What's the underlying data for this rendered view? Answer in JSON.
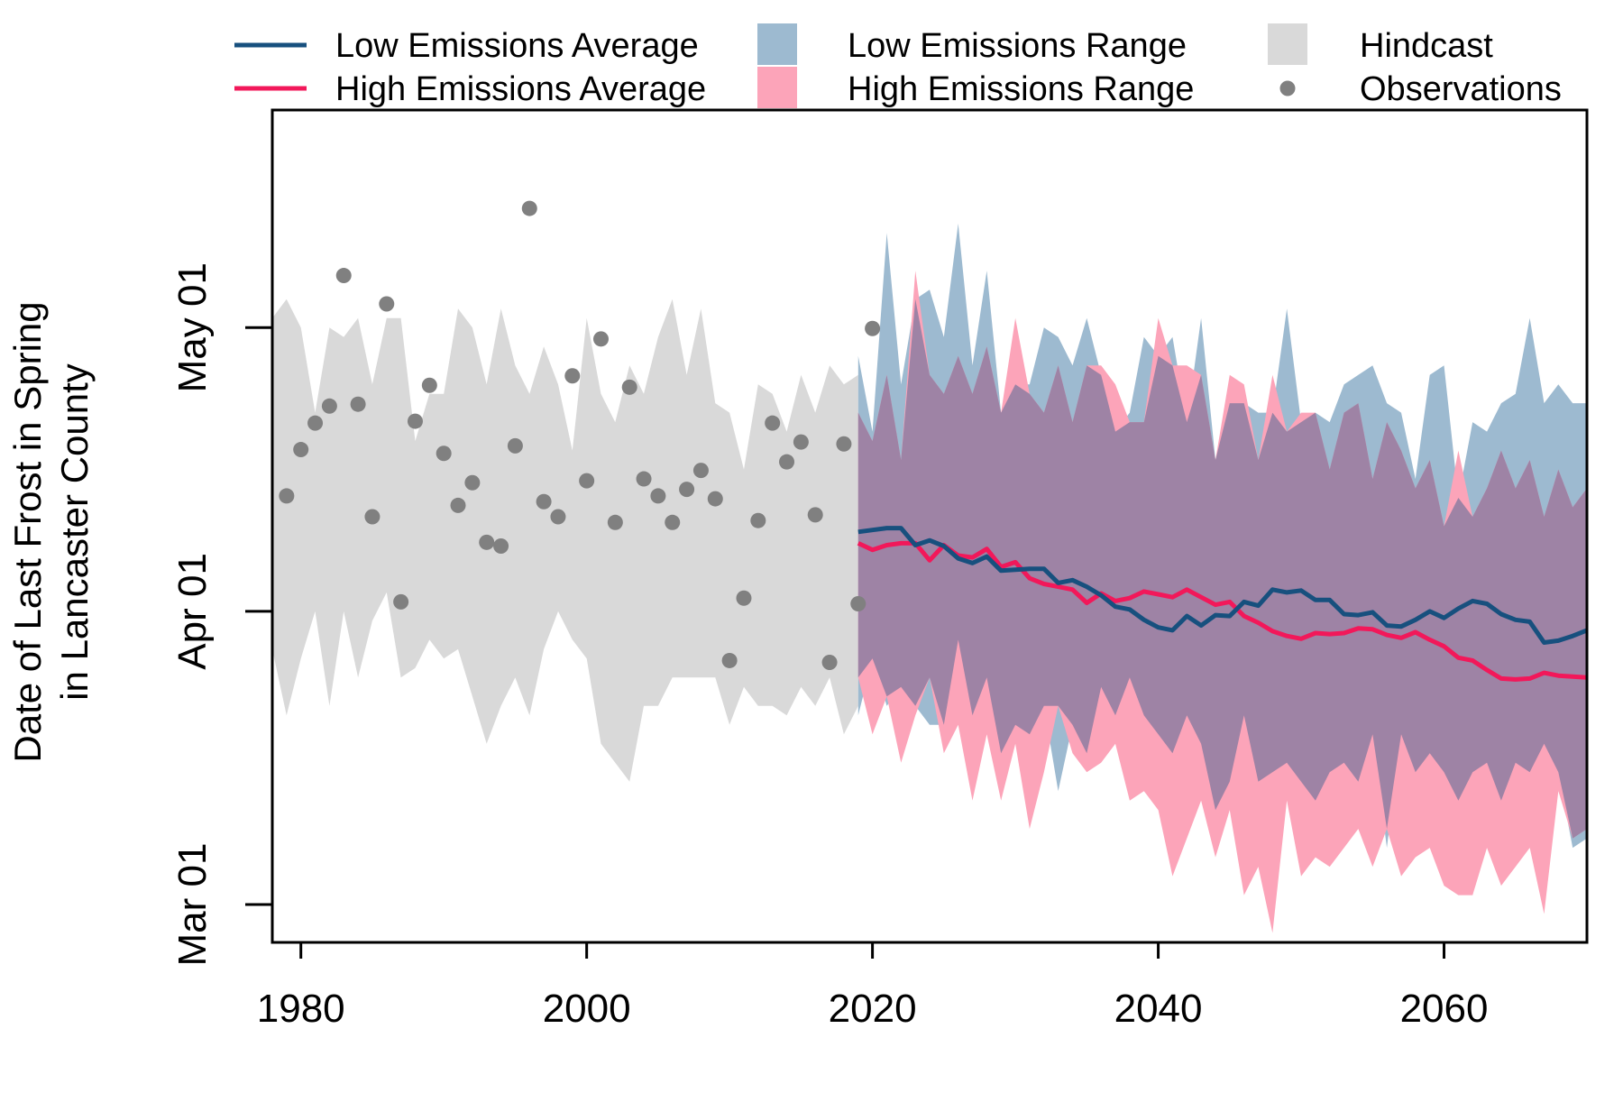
{
  "colors": {
    "low_line": "#17507e",
    "high_line": "#f2185a",
    "low_range": "#9dbad0",
    "high_range": "#fca4b9",
    "overlap": "#9e83a5",
    "hindcast": "#d9d9d9",
    "observations": "#808080",
    "axis": "#000000"
  },
  "legend": {
    "items": [
      {
        "id": "low-avg",
        "label": "Low Emissions Average",
        "kind": "line",
        "color": "#17507e"
      },
      {
        "id": "high-avg",
        "label": "High Emissions Average",
        "kind": "line",
        "color": "#f2185a"
      },
      {
        "id": "low-range",
        "label": "Low Emissions Range",
        "kind": "box",
        "color": "#9dbad0"
      },
      {
        "id": "high-range",
        "label": "High Emissions Range",
        "kind": "box",
        "color": "#fca4b9"
      },
      {
        "id": "hindcast",
        "label": "Hindcast",
        "kind": "box",
        "color": "#d9d9d9"
      },
      {
        "id": "observations",
        "label": "Observations",
        "kind": "point",
        "color": "#808080"
      }
    ]
  },
  "chart_data": {
    "type": "line",
    "title": "",
    "xlabel": "",
    "ylabel_lines": [
      "Date of Last Frost in Spring",
      "in Lancaster County"
    ],
    "x_unit": "year",
    "y_unit": "day of year",
    "xlim": [
      1978,
      2070
    ],
    "ylim": [
      56,
      144
    ],
    "x_ticks": [
      1980,
      2000,
      2020,
      2040,
      2060
    ],
    "y_ticks": [
      {
        "value": 60,
        "label": "Mar 01"
      },
      {
        "value": 91,
        "label": "Apr 01"
      },
      {
        "value": 121,
        "label": "May 01"
      }
    ],
    "grid": false,
    "legend_position": "top, above plot",
    "hindcast": {
      "x": [
        1978,
        1979,
        1980,
        1981,
        1982,
        1983,
        1984,
        1985,
        1986,
        1987,
        1988,
        1989,
        1990,
        1991,
        1992,
        1993,
        1994,
        1995,
        1996,
        1997,
        1998,
        1999,
        2000,
        2001,
        2002,
        2003,
        2004,
        2005,
        2006,
        2007,
        2008,
        2009,
        2010,
        2011,
        2012,
        2013,
        2014,
        2015,
        2016,
        2017,
        2018,
        2019
      ],
      "upper": [
        122,
        124,
        121,
        112,
        121,
        120,
        122,
        115,
        122,
        122,
        109,
        114,
        114,
        123,
        121,
        115,
        123,
        117,
        114,
        119,
        115,
        108,
        122,
        114,
        111,
        117,
        114,
        120,
        124,
        116,
        123,
        113,
        112,
        106,
        115,
        114,
        110,
        116,
        112,
        117,
        115,
        116
      ],
      "lower": [
        87,
        80,
        86,
        91,
        81,
        91,
        84,
        90,
        93,
        84,
        85,
        88,
        86,
        87,
        82,
        77,
        81,
        84,
        80,
        87,
        91,
        88,
        86,
        77,
        75,
        73,
        81,
        81,
        84,
        84,
        84,
        84,
        79,
        83,
        81,
        81,
        80,
        83,
        81,
        84,
        78,
        81
      ]
    },
    "observations": {
      "x": [
        1979,
        1980,
        1981,
        1982,
        1983,
        1984,
        1985,
        1986,
        1987,
        1988,
        1989,
        1990,
        1991,
        1992,
        1993,
        1994,
        1995,
        1996,
        1997,
        1998,
        1999,
        2000,
        2001,
        2002,
        2003,
        2004,
        2005,
        2006,
        2007,
        2008,
        2009,
        2010,
        2011,
        2012,
        2013,
        2014,
        2015,
        2016,
        2017,
        2018,
        2019,
        2020
      ],
      "y": [
        103.2,
        108.1,
        110.9,
        112.7,
        126.5,
        112.9,
        101.0,
        123.5,
        92.0,
        111.1,
        114.9,
        107.7,
        102.2,
        104.6,
        98.3,
        97.9,
        108.5,
        133.6,
        102.6,
        101.0,
        115.9,
        104.8,
        119.8,
        100.4,
        114.7,
        105.0,
        103.2,
        100.4,
        103.9,
        105.9,
        102.9,
        85.8,
        92.4,
        100.6,
        110.9,
        106.8,
        108.9,
        101.2,
        85.6,
        108.7,
        91.8,
        120.9
      ]
    },
    "projection_x": [
      2019,
      2020,
      2021,
      2022,
      2023,
      2024,
      2025,
      2026,
      2027,
      2028,
      2029,
      2030,
      2031,
      2032,
      2033,
      2034,
      2035,
      2036,
      2037,
      2038,
      2039,
      2040,
      2041,
      2042,
      2043,
      2044,
      2045,
      2046,
      2047,
      2048,
      2049,
      2050,
      2051,
      2052,
      2053,
      2054,
      2055,
      2056,
      2057,
      2058,
      2059,
      2060,
      2061,
      2062,
      2063,
      2064,
      2065,
      2066,
      2067,
      2068,
      2069,
      2070
    ],
    "series": [
      {
        "name": "Low Emissions Average",
        "values": [
          99.4,
          99.6,
          99.8,
          99.8,
          98.0,
          98.5,
          97.9,
          96.6,
          96.1,
          96.8,
          95.3,
          95.4,
          95.5,
          95.5,
          94.0,
          94.3,
          93.6,
          92.7,
          91.5,
          91.2,
          90.1,
          89.3,
          89.0,
          90.5,
          89.5,
          90.6,
          90.5,
          92.0,
          91.6,
          93.3,
          93.0,
          93.2,
          92.2,
          92.2,
          90.7,
          90.6,
          90.9,
          89.5,
          89.4,
          90.1,
          91.0,
          90.3,
          91.3,
          92.1,
          91.8,
          90.7,
          90.1,
          89.9,
          87.7,
          87.9,
          88.4,
          89.0
        ]
      },
      {
        "name": "High Emissions Average",
        "values": [
          98.2,
          97.5,
          98.0,
          98.2,
          98.2,
          96.4,
          98.0,
          96.9,
          96.7,
          97.6,
          95.7,
          96.2,
          94.5,
          93.9,
          93.6,
          93.3,
          91.9,
          92.9,
          92.1,
          92.4,
          93.1,
          92.8,
          92.5,
          93.3,
          92.5,
          91.7,
          92.0,
          90.5,
          89.8,
          88.9,
          88.4,
          88.1,
          88.7,
          88.6,
          88.7,
          89.2,
          89.1,
          88.5,
          88.2,
          88.8,
          88.0,
          87.3,
          86.1,
          85.8,
          84.8,
          83.9,
          83.8,
          83.9,
          84.5,
          84.2,
          84.1,
          84.0
        ]
      }
    ],
    "ranges": [
      {
        "name": "Low Emissions Range",
        "upper": [
          118,
          110,
          131,
          115,
          124,
          125,
          120,
          132,
          117,
          127,
          112,
          115,
          115,
          121,
          120,
          117,
          122,
          116,
          110,
          112,
          120,
          118,
          120,
          111,
          122,
          107,
          113,
          113,
          112,
          112,
          123,
          111,
          112,
          111,
          115,
          116,
          117,
          113,
          112,
          105,
          116,
          117,
          103,
          111,
          110,
          113,
          114,
          122,
          113,
          115,
          113,
          113
        ],
        "lower": [
          80,
          86,
          81,
          83,
          81,
          79,
          79,
          88,
          80,
          84,
          76,
          79,
          78,
          81,
          72,
          79,
          76,
          83,
          80,
          84,
          80,
          78,
          76,
          80,
          77,
          70,
          73,
          80,
          73,
          74,
          75,
          73,
          71,
          74,
          75,
          73,
          78,
          66,
          78,
          74,
          76,
          74,
          71,
          74,
          75,
          71,
          75,
          74,
          77,
          74,
          66,
          67
        ]
      },
      {
        "name": "High Emissions Range",
        "upper": [
          112,
          109,
          116,
          107,
          127,
          116,
          114,
          118,
          114,
          119,
          112,
          122,
          114,
          112,
          117,
          111,
          117,
          117,
          115,
          111,
          111,
          122,
          117,
          117,
          116,
          107,
          116,
          115,
          107,
          116,
          110,
          112,
          112,
          106,
          112,
          113,
          105,
          111,
          108,
          104,
          107,
          100,
          108,
          101,
          104,
          108,
          104,
          107,
          101,
          106,
          102,
          104
        ]
      },
      {
        "name": "High Emissions Range (lower)",
        "lower": [
          84,
          78,
          82,
          75,
          80,
          84,
          76,
          79,
          71,
          78,
          71,
          77,
          68,
          74,
          81,
          76,
          74,
          75,
          77,
          71,
          72,
          70,
          63,
          67,
          71,
          65,
          70,
          61,
          64,
          57,
          71,
          63,
          65,
          64,
          66,
          68,
          64,
          68,
          63,
          65,
          66,
          62,
          61,
          61,
          66,
          62,
          64,
          66,
          59,
          72,
          67,
          68
        ]
      }
    ]
  }
}
